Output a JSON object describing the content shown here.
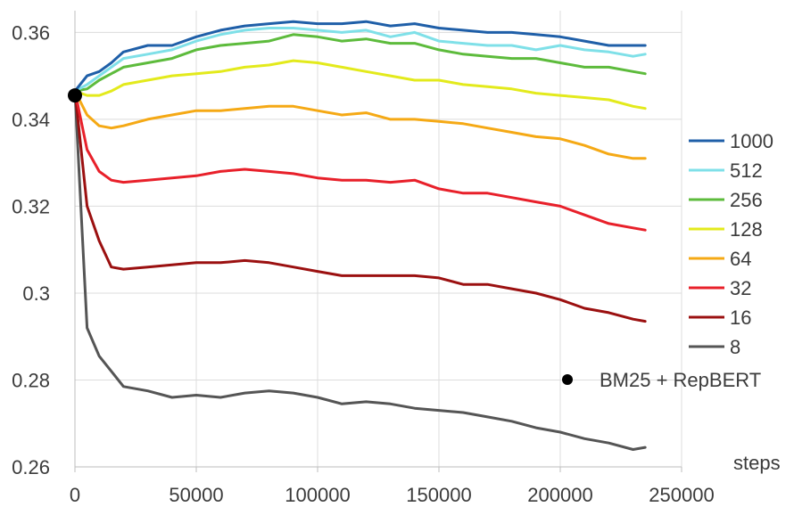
{
  "chart_data": {
    "type": "line",
    "xlabel": "steps",
    "ylabel": "",
    "xlim": [
      0,
      250000
    ],
    "ylim": [
      0.26,
      0.365
    ],
    "x_ticks": [
      {
        "value": 0,
        "label": "0"
      },
      {
        "value": 50000,
        "label": "50000"
      },
      {
        "value": 100000,
        "label": "100000"
      },
      {
        "value": 150000,
        "label": "150000"
      },
      {
        "value": 200000,
        "label": "200000"
      },
      {
        "value": 250000,
        "label": "250000"
      }
    ],
    "y_ticks": [
      {
        "value": 0.26,
        "label": "0.26"
      },
      {
        "value": 0.28,
        "label": "0.28"
      },
      {
        "value": 0.3,
        "label": "0.3"
      },
      {
        "value": 0.32,
        "label": "0.32"
      },
      {
        "value": 0.34,
        "label": "0.34"
      },
      {
        "value": 0.36,
        "label": "0.36"
      }
    ],
    "grid": {
      "horizontal": true,
      "vertical": true
    },
    "legend_position": "right",
    "x": [
      0,
      5000,
      10000,
      15000,
      20000,
      30000,
      40000,
      50000,
      60000,
      70000,
      80000,
      90000,
      100000,
      110000,
      120000,
      130000,
      140000,
      150000,
      160000,
      170000,
      180000,
      190000,
      200000,
      210000,
      220000,
      230000,
      235000
    ],
    "series": [
      {
        "name": "1000",
        "color": "#1f5fa8",
        "values": [
          0.3465,
          0.35,
          0.351,
          0.353,
          0.3555,
          0.357,
          0.357,
          0.359,
          0.3605,
          0.3615,
          0.362,
          0.3625,
          0.362,
          0.362,
          0.3625,
          0.3615,
          0.362,
          0.361,
          0.3605,
          0.36,
          0.36,
          0.3595,
          0.359,
          0.358,
          0.357,
          0.357,
          0.357
        ]
      },
      {
        "name": "512",
        "color": "#7fe0e8",
        "values": [
          0.3465,
          0.348,
          0.35,
          0.352,
          0.354,
          0.355,
          0.356,
          0.358,
          0.3595,
          0.3605,
          0.361,
          0.361,
          0.3605,
          0.36,
          0.3605,
          0.359,
          0.36,
          0.358,
          0.3575,
          0.357,
          0.357,
          0.356,
          0.357,
          0.356,
          0.3555,
          0.3545,
          0.355
        ]
      },
      {
        "name": "256",
        "color": "#5dbb3c",
        "values": [
          0.3465,
          0.347,
          0.349,
          0.3505,
          0.352,
          0.353,
          0.354,
          0.356,
          0.357,
          0.3575,
          0.358,
          0.3595,
          0.359,
          0.358,
          0.3585,
          0.3575,
          0.3575,
          0.356,
          0.355,
          0.3545,
          0.354,
          0.354,
          0.353,
          0.352,
          0.352,
          0.351,
          0.3505
        ]
      },
      {
        "name": "128",
        "color": "#e3ea1c",
        "values": [
          0.3465,
          0.3455,
          0.3455,
          0.3465,
          0.348,
          0.349,
          0.35,
          0.3505,
          0.351,
          0.352,
          0.3525,
          0.3535,
          0.353,
          0.352,
          0.351,
          0.35,
          0.349,
          0.349,
          0.348,
          0.3475,
          0.347,
          0.346,
          0.3455,
          0.345,
          0.3445,
          0.343,
          0.3425
        ]
      },
      {
        "name": "64",
        "color": "#f5a915",
        "values": [
          0.3465,
          0.341,
          0.3385,
          0.338,
          0.3385,
          0.34,
          0.341,
          0.342,
          0.342,
          0.3425,
          0.343,
          0.343,
          0.342,
          0.341,
          0.3415,
          0.34,
          0.34,
          0.3395,
          0.339,
          0.338,
          0.337,
          0.336,
          0.3355,
          0.334,
          0.332,
          0.331,
          0.331
        ]
      },
      {
        "name": "32",
        "color": "#e8202a",
        "values": [
          0.3465,
          0.333,
          0.328,
          0.326,
          0.3255,
          0.326,
          0.3265,
          0.327,
          0.328,
          0.3285,
          0.328,
          0.3275,
          0.3265,
          0.326,
          0.326,
          0.3255,
          0.326,
          0.324,
          0.323,
          0.323,
          0.322,
          0.321,
          0.32,
          0.318,
          0.316,
          0.315,
          0.3145
        ]
      },
      {
        "name": "16",
        "color": "#9b1010",
        "values": [
          0.3465,
          0.32,
          0.312,
          0.306,
          0.3055,
          0.306,
          0.3065,
          0.307,
          0.307,
          0.3075,
          0.307,
          0.306,
          0.305,
          0.304,
          0.304,
          0.304,
          0.304,
          0.3035,
          0.302,
          0.302,
          0.301,
          0.3,
          0.2985,
          0.2965,
          0.2955,
          0.294,
          0.2935
        ]
      },
      {
        "name": "8",
        "color": "#555555",
        "values": [
          0.3465,
          0.292,
          0.2855,
          0.282,
          0.2785,
          0.2775,
          0.276,
          0.2765,
          0.276,
          0.277,
          0.2775,
          0.277,
          0.276,
          0.2745,
          0.275,
          0.2745,
          0.2735,
          0.273,
          0.2725,
          0.2715,
          0.2705,
          0.269,
          0.268,
          0.2665,
          0.2655,
          0.264,
          0.2645
        ]
      }
    ],
    "points": [
      {
        "name": "BM25 + RepBERT",
        "x": 0,
        "y": 0.3455,
        "color": "#000000"
      }
    ]
  }
}
